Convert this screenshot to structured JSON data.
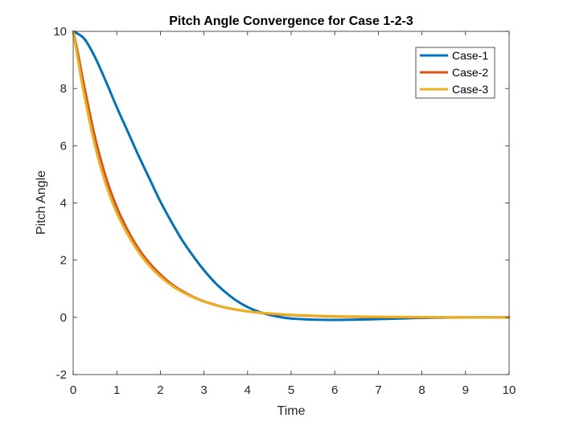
{
  "chart_data": {
    "type": "line",
    "title": "Pitch Angle Convergence for Case 1-2-3",
    "xlabel": "Time",
    "ylabel": "Pitch Angle",
    "xlim": [
      0,
      10
    ],
    "ylim": [
      -2,
      10
    ],
    "xticks": [
      "0",
      "1",
      "2",
      "3",
      "4",
      "5",
      "6",
      "7",
      "8",
      "9",
      "10"
    ],
    "yticks": [
      "-2",
      "0",
      "2",
      "4",
      "6",
      "8",
      "10"
    ],
    "grid": false,
    "legend_position": "top-right",
    "series": [
      {
        "name": "Case-1",
        "color": "#0072BD",
        "x": [
          0,
          0.25,
          0.5,
          0.75,
          1.0,
          1.25,
          1.5,
          1.75,
          2.0,
          2.25,
          2.5,
          2.75,
          3.0,
          3.25,
          3.5,
          3.75,
          4.0,
          4.25,
          4.5,
          4.75,
          5.0,
          5.5,
          6.0,
          6.5,
          7.0,
          7.5,
          8.0,
          9.0,
          10.0
        ],
        "values": [
          10.0,
          9.75,
          9.1,
          8.25,
          7.35,
          6.5,
          5.65,
          4.85,
          4.05,
          3.35,
          2.7,
          2.15,
          1.65,
          1.22,
          0.87,
          0.58,
          0.36,
          0.2,
          0.09,
          0.01,
          -0.04,
          -0.08,
          -0.09,
          -0.08,
          -0.06,
          -0.04,
          -0.02,
          0.0,
          0.0
        ]
      },
      {
        "name": "Case-2",
        "color": "#D95319",
        "x": [
          0,
          0.1,
          0.25,
          0.5,
          0.75,
          1.0,
          1.25,
          1.5,
          1.75,
          2.0,
          2.25,
          2.5,
          2.75,
          3.0,
          3.25,
          3.5,
          3.75,
          4.0,
          4.5,
          5.0,
          5.5,
          6.0,
          6.5,
          7.0,
          8.0,
          9.0,
          10.0
        ],
        "values": [
          10.0,
          9.3,
          8.1,
          6.3,
          4.9,
          3.85,
          3.05,
          2.4,
          1.9,
          1.5,
          1.17,
          0.92,
          0.72,
          0.56,
          0.44,
          0.34,
          0.27,
          0.21,
          0.13,
          0.08,
          0.05,
          0.03,
          0.02,
          0.01,
          0.0,
          0.0,
          0.0
        ]
      },
      {
        "name": "Case-3",
        "color": "#EDB120",
        "x": [
          0,
          0.1,
          0.25,
          0.5,
          0.75,
          1.0,
          1.25,
          1.5,
          1.75,
          2.0,
          2.25,
          2.5,
          2.75,
          3.0,
          3.25,
          3.5,
          3.75,
          4.0,
          4.5,
          5.0,
          5.5,
          6.0,
          6.5,
          7.0,
          8.0,
          9.0,
          10.0
        ],
        "values": [
          10.0,
          9.1,
          7.8,
          6.0,
          4.65,
          3.65,
          2.9,
          2.28,
          1.8,
          1.42,
          1.12,
          0.89,
          0.7,
          0.55,
          0.43,
          0.34,
          0.27,
          0.21,
          0.14,
          0.09,
          0.06,
          0.04,
          0.03,
          0.02,
          0.01,
          0.0,
          0.0
        ]
      }
    ]
  }
}
